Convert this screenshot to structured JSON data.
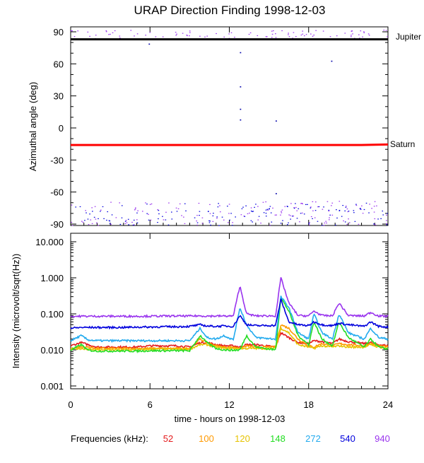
{
  "title": "URAP Direction Finding  1998-12-03",
  "x_axis": {
    "label": "time - hours on 1998-12-03",
    "ticks": [
      "0",
      "6",
      "12",
      "18",
      "24"
    ]
  },
  "top_panel": {
    "ylabel": "Azimuthal angle (deg)",
    "ticks": [
      "90",
      "60",
      "30",
      "0",
      "-30",
      "-60",
      "-90"
    ]
  },
  "bottom_panel": {
    "ylabel": "Intensity (microvolt/sqrt(Hz))",
    "ticks": [
      "10.000",
      "1.000",
      "0.100",
      "0.010",
      "0.001"
    ]
  },
  "legend": {
    "label": "Frequencies (kHz):",
    "items": [
      {
        "label": "52",
        "color": "#e41a1c"
      },
      {
        "label": "100",
        "color": "#ff9900"
      },
      {
        "label": "120",
        "color": "#e6c300"
      },
      {
        "label": "148",
        "color": "#22dd22"
      },
      {
        "label": "272",
        "color": "#22aaee"
      },
      {
        "label": "540",
        "color": "#0000dd"
      },
      {
        "label": "940",
        "color": "#9933ee"
      }
    ]
  },
  "chart_data": [
    {
      "type": "line",
      "panel": "azimuth",
      "xlim": [
        0,
        24
      ],
      "ylim": [
        -90,
        90
      ],
      "ylabel": "Azimuthal angle (deg)",
      "series": [
        {
          "name": "Jupiter",
          "color": "#000000",
          "x": [
            0,
            24
          ],
          "y": [
            83,
            83
          ]
        },
        {
          "name": "Saturn",
          "color": "#ff0000",
          "x": [
            0,
            22,
            24
          ],
          "y": [
            -16,
            -16,
            -15.5
          ]
        }
      ],
      "scatter_bands": [
        {
          "color": "#9933ee",
          "y_range": [
            84,
            92
          ]
        },
        {
          "color": "#9933ee",
          "y_range": [
            -91,
            -68
          ]
        },
        {
          "color": "#0000dd",
          "y_range": [
            -91,
            -70
          ]
        }
      ],
      "outliers": [
        {
          "x": 5.9,
          "y": 79
        },
        {
          "x": 12.8,
          "y": 71
        },
        {
          "x": 12.8,
          "y": 39
        },
        {
          "x": 12.8,
          "y": 18
        },
        {
          "x": 12.8,
          "y": 8
        },
        {
          "x": 15.5,
          "y": 7
        },
        {
          "x": 15.5,
          "y": -61
        },
        {
          "x": 19.7,
          "y": 63
        }
      ]
    },
    {
      "type": "line",
      "panel": "intensity",
      "yscale": "log",
      "xlim": [
        0,
        24
      ],
      "ylim": [
        0.001,
        10
      ],
      "ylabel": "Intensity (microvolt/sqrt(Hz))",
      "x": [
        0,
        0.8,
        1.3,
        2,
        3,
        4,
        5,
        6,
        7,
        8,
        9,
        9.8,
        10.3,
        11,
        11.6,
        12.3,
        12.8,
        13.3,
        14,
        15.5,
        15.9,
        16.5,
        17.2,
        18,
        18.4,
        19,
        19.8,
        20.3,
        21,
        22.2,
        22.7,
        23.3,
        24
      ],
      "series": [
        {
          "name": "52",
          "color": "#e41a1c",
          "values": [
            0.013,
            0.016,
            0.014,
            0.012,
            0.012,
            0.012,
            0.012,
            0.013,
            0.013,
            0.013,
            0.012,
            0.016,
            0.016,
            0.014,
            0.013,
            0.013,
            0.012,
            0.014,
            0.014,
            0.012,
            0.03,
            0.022,
            0.016,
            0.015,
            0.018,
            0.017,
            0.015,
            0.02,
            0.017,
            0.015,
            0.016,
            0.014,
            0.013
          ]
        },
        {
          "name": "100",
          "color": "#ff9900",
          "values": [
            0.011,
            0.012,
            0.012,
            0.011,
            0.011,
            0.011,
            0.011,
            0.011,
            0.011,
            0.011,
            0.011,
            0.02,
            0.016,
            0.013,
            0.012,
            0.012,
            0.011,
            0.013,
            0.012,
            0.012,
            0.05,
            0.04,
            0.02,
            0.013,
            0.012,
            0.015,
            0.013,
            0.015,
            0.014,
            0.013,
            0.015,
            0.013,
            0.012
          ]
        },
        {
          "name": "120",
          "color": "#e6c300",
          "values": [
            0.0105,
            0.011,
            0.0105,
            0.01,
            0.01,
            0.01,
            0.01,
            0.0105,
            0.0105,
            0.0105,
            0.0105,
            0.014,
            0.014,
            0.012,
            0.011,
            0.011,
            0.011,
            0.011,
            0.011,
            0.011,
            0.04,
            0.03,
            0.014,
            0.012,
            0.011,
            0.013,
            0.012,
            0.013,
            0.012,
            0.012,
            0.014,
            0.012,
            0.011
          ]
        },
        {
          "name": "148",
          "color": "#22dd22",
          "values": [
            0.0098,
            0.014,
            0.0098,
            0.0093,
            0.0093,
            0.0093,
            0.0093,
            0.0095,
            0.0095,
            0.0095,
            0.0095,
            0.025,
            0.016,
            0.011,
            0.01,
            0.0098,
            0.01,
            0.025,
            0.012,
            0.01,
            0.28,
            0.12,
            0.025,
            0.014,
            0.06,
            0.02,
            0.013,
            0.06,
            0.022,
            0.012,
            0.02,
            0.012,
            0.0105
          ]
        },
        {
          "name": "272",
          "color": "#22aaee",
          "values": [
            0.018,
            0.025,
            0.019,
            0.018,
            0.018,
            0.018,
            0.018,
            0.018,
            0.018,
            0.018,
            0.018,
            0.04,
            0.022,
            0.02,
            0.025,
            0.019,
            0.15,
            0.05,
            0.022,
            0.02,
            0.3,
            0.15,
            0.03,
            0.02,
            0.1,
            0.03,
            0.02,
            0.1,
            0.03,
            0.02,
            0.04,
            0.022,
            0.02
          ]
        },
        {
          "name": "540",
          "color": "#0000dd",
          "values": [
            0.04,
            0.042,
            0.042,
            0.042,
            0.042,
            0.042,
            0.043,
            0.043,
            0.044,
            0.044,
            0.045,
            0.05,
            0.046,
            0.045,
            0.046,
            0.045,
            0.09,
            0.05,
            0.047,
            0.048,
            0.25,
            0.06,
            0.05,
            0.047,
            0.06,
            0.05,
            0.047,
            0.055,
            0.05,
            0.045,
            0.06,
            0.045,
            0.043
          ]
        },
        {
          "name": "940",
          "color": "#9933ee",
          "values": [
            0.085,
            0.086,
            0.086,
            0.086,
            0.086,
            0.086,
            0.086,
            0.086,
            0.087,
            0.087,
            0.087,
            0.088,
            0.087,
            0.087,
            0.087,
            0.087,
            0.6,
            0.1,
            0.088,
            0.088,
            1.0,
            0.2,
            0.09,
            0.088,
            0.12,
            0.09,
            0.088,
            0.2,
            0.09,
            0.087,
            0.11,
            0.087,
            0.086
          ]
        }
      ]
    }
  ]
}
